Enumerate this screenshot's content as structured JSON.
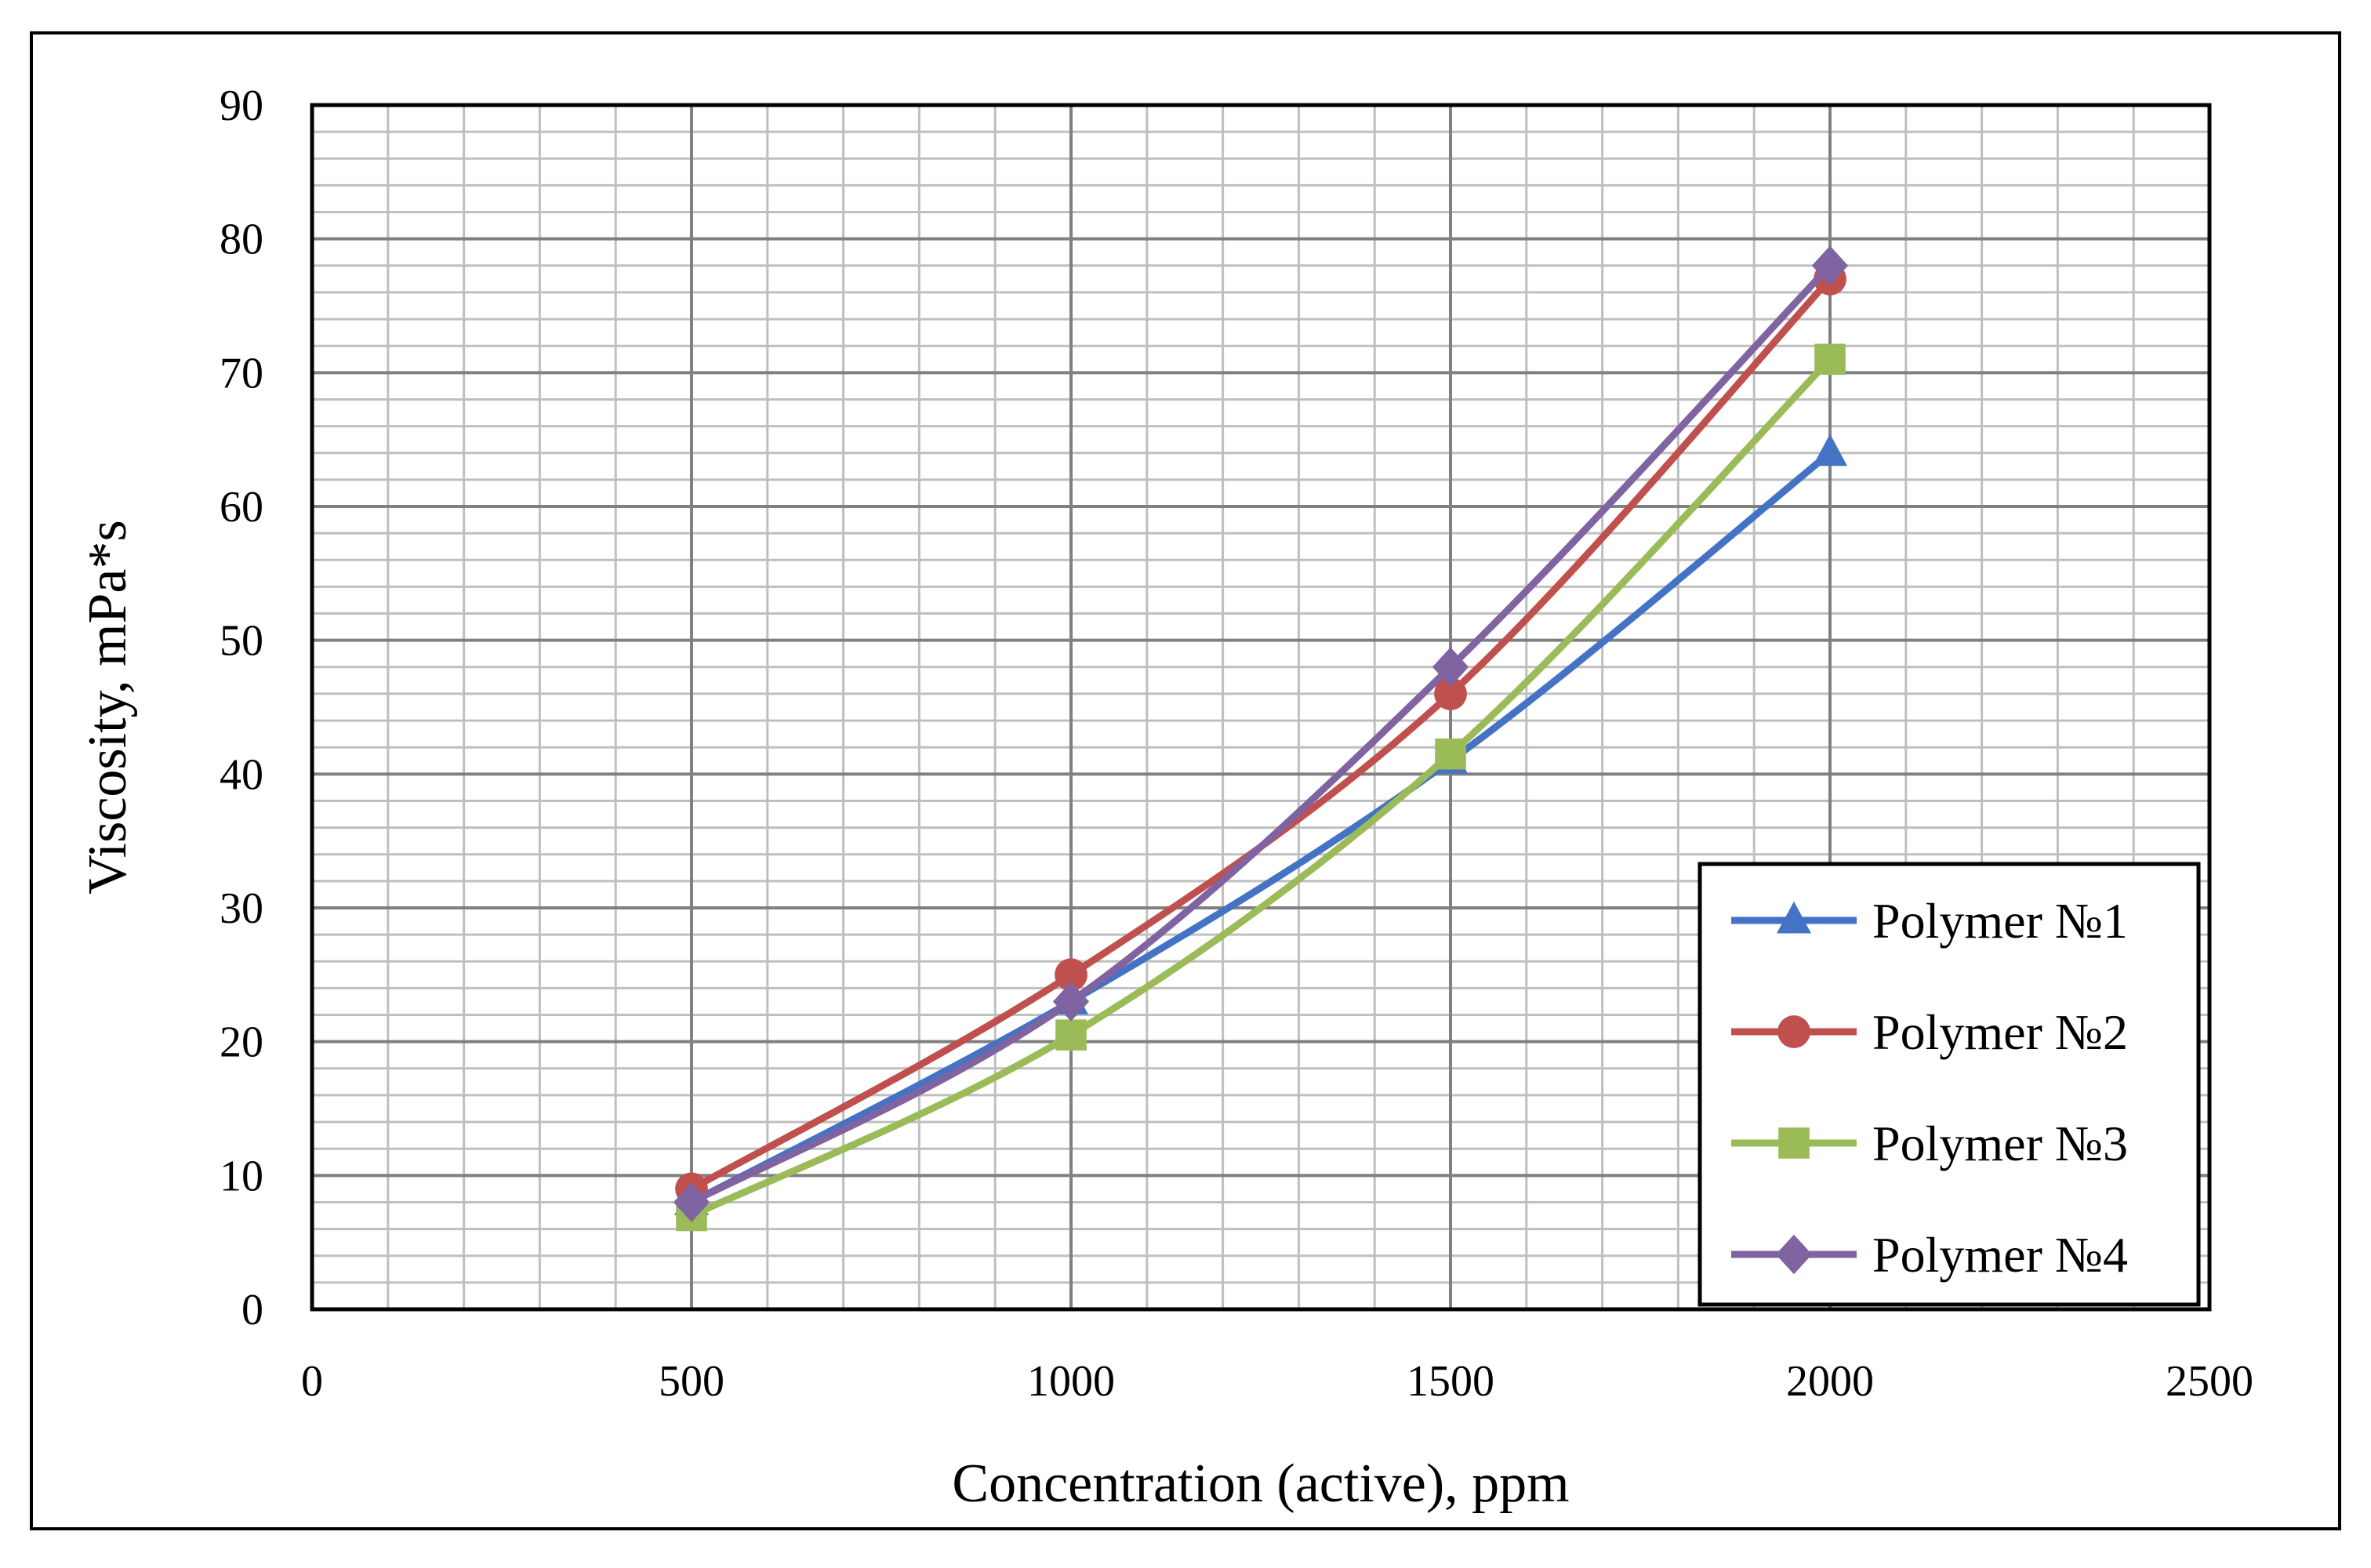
{
  "chart_data": {
    "type": "line",
    "title": "",
    "xlabel": "Concentration (active), ppm",
    "ylabel": "Viscosity, mPa*s",
    "xlim": [
      0,
      2500
    ],
    "ylim": [
      0,
      90
    ],
    "x_ticks": [
      0,
      500,
      1000,
      1500,
      2000,
      2500
    ],
    "y_ticks": [
      0,
      10,
      20,
      30,
      40,
      50,
      60,
      70,
      80,
      90
    ],
    "x_minor_step": 100,
    "y_minor_step": 2,
    "grid": true,
    "legend_position": "bottom-right",
    "x": [
      500,
      1000,
      1500,
      2000
    ],
    "series": [
      {
        "name": "Polymer №1",
        "values": [
          8,
          23,
          41,
          64
        ],
        "color": "#4472C4",
        "marker": "triangle"
      },
      {
        "name": "Polymer №2",
        "values": [
          9,
          25,
          46,
          77
        ],
        "color": "#C0504D",
        "marker": "circle"
      },
      {
        "name": "Polymer №3",
        "values": [
          7,
          20.5,
          41.5,
          71
        ],
        "color": "#9BBB59",
        "marker": "square"
      },
      {
        "name": "Polymer №4",
        "values": [
          8,
          23,
          48,
          78
        ],
        "color": "#8064A2",
        "marker": "diamond"
      }
    ]
  }
}
